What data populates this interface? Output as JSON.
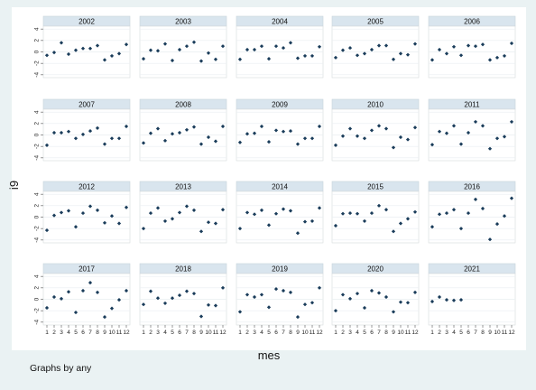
{
  "chart_data": {
    "type": "scatter",
    "by_variable": "any",
    "xlabel": "mes",
    "ylabel": "i9",
    "note": "Graphs by any",
    "x_ticks": [
      1,
      2,
      3,
      4,
      5,
      6,
      7,
      8,
      9,
      10,
      11,
      12
    ],
    "y_ticks": [
      -4,
      -2,
      0,
      2,
      4
    ],
    "ylim": [
      -4.5,
      4.5
    ],
    "xlim": [
      0.5,
      12.5
    ],
    "panels": [
      {
        "title": "2002",
        "x": [
          1,
          2,
          3,
          4,
          5,
          6,
          7,
          8,
          9,
          10,
          11,
          12
        ],
        "y": [
          -0.6,
          -0.1,
          1.6,
          -0.4,
          0.3,
          0.6,
          0.6,
          1.1,
          -1.4,
          -0.7,
          -0.3,
          1.3
        ]
      },
      {
        "title": "2003",
        "x": [
          1,
          2,
          3,
          4,
          5,
          6,
          7,
          8,
          9,
          10,
          11,
          12
        ],
        "y": [
          -1.2,
          0.3,
          0.2,
          1.4,
          -1.5,
          0.4,
          1.0,
          1.7,
          -1.6,
          -0.2,
          -1.3,
          1.0
        ]
      },
      {
        "title": "2004",
        "x": [
          1,
          2,
          3,
          4,
          5,
          6,
          7,
          8,
          9,
          10,
          11,
          12
        ],
        "y": [
          -1.3,
          0.4,
          0.4,
          1.0,
          -1.2,
          1.0,
          0.7,
          1.6,
          -1.1,
          -0.7,
          -0.7,
          0.9
        ]
      },
      {
        "title": "2005",
        "x": [
          1,
          2,
          3,
          4,
          5,
          6,
          7,
          8,
          9,
          10,
          11,
          12
        ],
        "y": [
          -1.0,
          0.3,
          0.7,
          -0.6,
          -0.3,
          0.4,
          1.1,
          1.1,
          -1.3,
          -0.3,
          -0.5,
          1.4
        ]
      },
      {
        "title": "2006",
        "x": [
          1,
          2,
          3,
          4,
          5,
          6,
          7,
          8,
          9,
          10,
          11,
          12
        ],
        "y": [
          -1.4,
          0.4,
          -0.3,
          0.9,
          -0.6,
          1.1,
          1.0,
          1.3,
          -1.4,
          -1.0,
          -0.7,
          1.5
        ]
      },
      {
        "title": "2007",
        "x": [
          1,
          2,
          3,
          4,
          5,
          6,
          7,
          8,
          9,
          10,
          11,
          12
        ],
        "y": [
          -1.8,
          0.4,
          0.4,
          0.6,
          -0.6,
          0.1,
          0.7,
          1.2,
          -1.6,
          -0.6,
          -0.6,
          1.5
        ]
      },
      {
        "title": "2008",
        "x": [
          1,
          2,
          3,
          4,
          5,
          6,
          7,
          8,
          9,
          10,
          11,
          12
        ],
        "y": [
          -1.4,
          0.3,
          1.1,
          -1.0,
          0.2,
          0.4,
          0.9,
          1.4,
          -1.6,
          -0.4,
          -1.1,
          1.5
        ]
      },
      {
        "title": "2009",
        "x": [
          1,
          2,
          3,
          4,
          5,
          6,
          7,
          8,
          9,
          10,
          11,
          12
        ],
        "y": [
          -1.3,
          0.2,
          0.3,
          1.5,
          -1.2,
          0.8,
          0.6,
          0.7,
          -1.6,
          -0.6,
          -0.6,
          1.5
        ]
      },
      {
        "title": "2010",
        "x": [
          1,
          2,
          3,
          4,
          5,
          6,
          7,
          8,
          9,
          10,
          11,
          12
        ],
        "y": [
          -1.8,
          -0.2,
          1.1,
          -0.2,
          -0.6,
          0.8,
          1.6,
          1.1,
          -2.2,
          -0.4,
          -0.8,
          1.3
        ]
      },
      {
        "title": "2011",
        "x": [
          1,
          2,
          3,
          4,
          5,
          6,
          7,
          8,
          9,
          10,
          11,
          12
        ],
        "y": [
          -1.7,
          0.6,
          0.3,
          1.6,
          -1.6,
          0.4,
          2.3,
          1.6,
          -2.4,
          -0.6,
          -0.3,
          2.3
        ]
      },
      {
        "title": "2012",
        "x": [
          1,
          2,
          3,
          4,
          5,
          6,
          7,
          8,
          9,
          10,
          11,
          12
        ],
        "y": [
          -2.3,
          0.3,
          0.8,
          1.1,
          -1.7,
          0.7,
          1.9,
          1.2,
          -1.0,
          0.2,
          -1.1,
          1.7
        ]
      },
      {
        "title": "2013",
        "x": [
          1,
          2,
          3,
          4,
          5,
          6,
          7,
          8,
          9,
          10,
          11,
          12
        ],
        "y": [
          -2.0,
          0.7,
          1.6,
          -0.7,
          -0.3,
          0.8,
          1.9,
          1.2,
          -2.5,
          -0.9,
          -1.1,
          1.3
        ]
      },
      {
        "title": "2014",
        "x": [
          1,
          2,
          3,
          4,
          5,
          6,
          7,
          8,
          9,
          10,
          11,
          12
        ],
        "y": [
          -2.0,
          0.8,
          0.5,
          1.2,
          -1.4,
          0.6,
          1.4,
          1.1,
          -2.8,
          -0.8,
          -0.7,
          1.6
        ]
      },
      {
        "title": "2015",
        "x": [
          1,
          2,
          3,
          4,
          5,
          6,
          7,
          8,
          9,
          10,
          11,
          12
        ],
        "y": [
          -1.5,
          0.6,
          0.7,
          0.6,
          -0.7,
          0.7,
          2.0,
          1.3,
          -2.5,
          -1.1,
          -0.3,
          0.9
        ]
      },
      {
        "title": "2016",
        "x": [
          1,
          2,
          3,
          4,
          5,
          6,
          7,
          8,
          9,
          10,
          11,
          12
        ],
        "y": [
          -1.7,
          0.5,
          0.7,
          1.3,
          -2.0,
          0.7,
          3.1,
          1.5,
          -3.9,
          -1.2,
          0.2,
          3.3
        ]
      },
      {
        "title": "2017",
        "x": [
          1,
          2,
          3,
          4,
          5,
          6,
          7,
          8,
          9,
          10,
          11,
          12
        ],
        "y": [
          -1.5,
          0.4,
          0.1,
          1.3,
          -2.3,
          1.5,
          2.9,
          1.2,
          -3.1,
          -1.6,
          -0.1,
          1.5
        ]
      },
      {
        "title": "2018",
        "x": [
          1,
          2,
          3,
          4,
          5,
          6,
          7,
          8,
          9,
          10,
          11,
          12
        ],
        "y": [
          -0.9,
          1.4,
          0.2,
          -0.7,
          0.2,
          0.7,
          1.4,
          1.0,
          -3.0,
          -1.0,
          -1.1,
          2.0
        ]
      },
      {
        "title": "2019",
        "x": [
          1,
          2,
          3,
          4,
          5,
          6,
          7,
          8,
          9,
          10,
          11,
          12
        ],
        "y": [
          -2.2,
          0.8,
          0.4,
          0.8,
          -1.4,
          1.8,
          1.5,
          1.2,
          -3.1,
          -0.9,
          -0.6,
          2.0
        ]
      },
      {
        "title": "2020",
        "x": [
          1,
          2,
          3,
          4,
          5,
          6,
          7,
          8,
          9,
          10,
          11,
          12
        ],
        "y": [
          -2.0,
          0.8,
          0.1,
          1.0,
          -1.5,
          1.5,
          1.1,
          0.4,
          -2.2,
          -0.5,
          -0.6,
          1.2
        ]
      },
      {
        "title": "2021",
        "x": [
          1,
          2,
          3,
          4,
          5
        ],
        "y": [
          -0.4,
          0.4,
          -0.1,
          -0.2,
          -0.1
        ]
      }
    ]
  }
}
